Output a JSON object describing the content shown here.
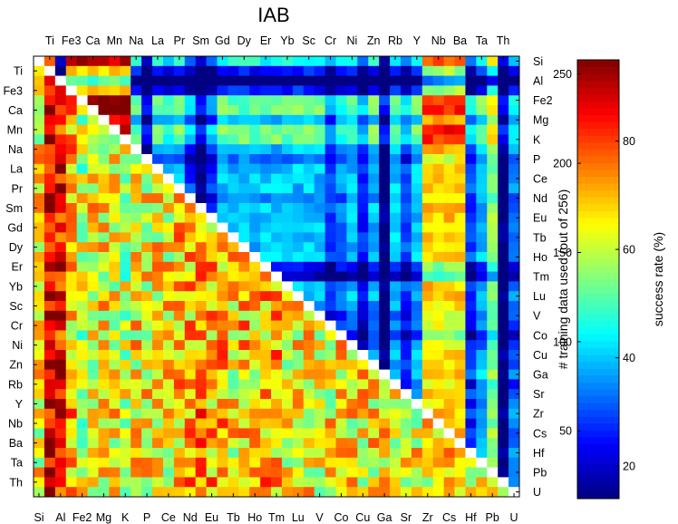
{
  "chart_data": {
    "type": "heatmap",
    "title": "IAB",
    "x_top_labels": [
      "Ti",
      "Fe3",
      "Ca",
      "Mn",
      "Na",
      "La",
      "Pr",
      "Sm",
      "Gd",
      "Dy",
      "Er",
      "Yb",
      "Sc",
      "Cr",
      "Ni",
      "Zn",
      "Rb",
      "Y",
      "Nb",
      "Ba",
      "Ta",
      "Th"
    ],
    "x_bottom_labels": [
      "Si",
      "Al",
      "Fe2",
      "Mg",
      "K",
      "P",
      "Ce",
      "Nd",
      "Eu",
      "Tb",
      "Ho",
      "Tm",
      "Lu",
      "V",
      "Co",
      "Cu",
      "Ga",
      "Sr",
      "Zr",
      "Cs",
      "Hf",
      "Pb",
      "U"
    ],
    "y_left_labels": [
      "Ti",
      "Fe3",
      "Ca",
      "Mn",
      "Na",
      "La",
      "Pr",
      "Sm",
      "Gd",
      "Dy",
      "Er",
      "Yb",
      "Sc",
      "Cr",
      "Ni",
      "Zn",
      "Rb",
      "Y",
      "Nb",
      "Ba",
      "Ta",
      "Th"
    ],
    "y_right_labels": [
      "Si",
      "Al",
      "Fe2",
      "Mg",
      "K",
      "P",
      "Ce",
      "Nd",
      "Eu",
      "Tb",
      "Ho",
      "Tm",
      "Lu",
      "V",
      "Co",
      "Cu",
      "Ga",
      "Sr",
      "Zr",
      "Cs",
      "Hf",
      "Pb",
      "U"
    ],
    "matrix_size": 45,
    "diagonal": "white",
    "upper_triangle": "# training data used (out of 256)",
    "lower_triangle": "success rate (%)",
    "upper_column_values": [
      240,
      200,
      35,
      240,
      240,
      240,
      240,
      240,
      240,
      110,
      18,
      110,
      95,
      110,
      75,
      30,
      75,
      110,
      110,
      110,
      110,
      110,
      110,
      110,
      110,
      110,
      110,
      75,
      95,
      110,
      70,
      110,
      30,
      110,
      80,
      110,
      200,
      200,
      200,
      200,
      80,
      110,
      160,
      30,
      95
    ],
    "upper_row_offsets": [
      0,
      -60,
      -120,
      -60,
      20,
      20,
      -20,
      20,
      20,
      -20,
      -40,
      -20,
      -20,
      -20,
      -30,
      -20,
      -20,
      -20,
      -20,
      -20,
      -20,
      -60,
      -80,
      -20,
      -20,
      -30,
      -40,
      -40,
      -60,
      -40,
      -20,
      -30,
      -20,
      -40,
      -20,
      -30,
      -20,
      -30,
      -20,
      -20,
      -20,
      -20,
      -20,
      -20,
      -20
    ],
    "lower_mean": 65,
    "lower_column_offsets": [
      0,
      25,
      20,
      5,
      -5,
      0,
      0,
      0,
      -5,
      0,
      0,
      0,
      0,
      5,
      5,
      8,
      5,
      5,
      0,
      5,
      0,
      5,
      5,
      0,
      0,
      0,
      0,
      0,
      0,
      0,
      0,
      0,
      0,
      0,
      0,
      0,
      0,
      0,
      0,
      0,
      0,
      0,
      0,
      0,
      0
    ],
    "colorbar": {
      "left_ticks": [
        50,
        100,
        150,
        200,
        250
      ],
      "left_range": [
        12,
        258
      ],
      "right_ticks": [
        20,
        40,
        60,
        80
      ],
      "right_range": [
        14,
        95
      ],
      "colormap": "jet",
      "left_label": "# training data used (out of 256)",
      "right_label": "success rate (%)"
    }
  }
}
